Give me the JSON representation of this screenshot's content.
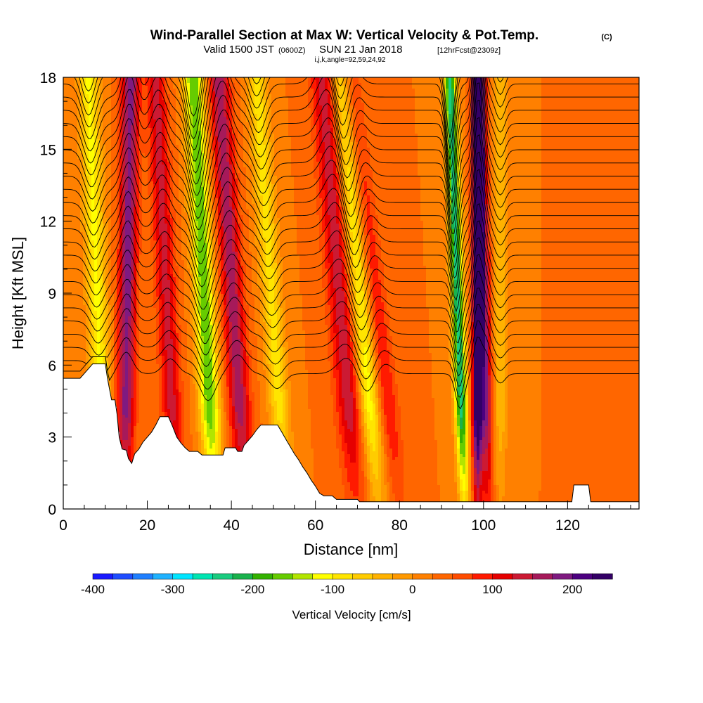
{
  "header": {
    "title": "Wind-Parallel Section at Max W: Vertical Velocity & Pot.Temp.",
    "copyright": "(C)",
    "valid_prefix": "Valid 1500 JST",
    "valid_utc": "(0600Z)",
    "valid_date": "SUN 21 Jan 2018",
    "forecast": "[12hrFcst@2309z]",
    "indices": "i,j,k,angle=92,59,24,92"
  },
  "chart_data": {
    "type": "heatmap",
    "xlabel": "Distance [nm]",
    "ylabel": "Height [Kft MSL]",
    "xlim": [
      0,
      137
    ],
    "ylim": [
      0,
      18
    ],
    "x_ticks": [
      0,
      20,
      40,
      60,
      80,
      100,
      120
    ],
    "y_ticks": [
      0,
      3,
      6,
      9,
      12,
      15,
      18
    ],
    "colorbar": {
      "label": "Vertical Velocity [cm/s]",
      "min": -400,
      "max": 250,
      "step": 25,
      "tick_values": [
        -400,
        -300,
        -200,
        -100,
        0,
        100,
        200
      ],
      "colors": [
        "#1a1aff",
        "#1f4dff",
        "#1f7fff",
        "#1fb2ff",
        "#00e5ff",
        "#00e5b2",
        "#19cc7f",
        "#19b24c",
        "#33b200",
        "#66cc00",
        "#b2e500",
        "#ffff00",
        "#ffe500",
        "#ffcc00",
        "#ffb200",
        "#ff9900",
        "#ff8000",
        "#ff6600",
        "#ff4c00",
        "#ff1a00",
        "#e50000",
        "#cc1a33",
        "#a61a5a",
        "#7f1a80",
        "#4c0080",
        "#330066"
      ]
    },
    "terrain": [
      [
        0,
        5.45
      ],
      [
        4,
        5.45
      ],
      [
        7,
        6.05
      ],
      [
        10,
        6.05
      ],
      [
        10.5,
        5.45
      ],
      [
        11.5,
        4.55
      ],
      [
        12.3,
        4.55
      ],
      [
        12.8,
        3.95
      ],
      [
        13.3,
        3.0
      ],
      [
        14,
        2.5
      ],
      [
        15,
        2.45
      ],
      [
        15.5,
        2.1
      ],
      [
        16.3,
        1.9
      ],
      [
        17,
        2.3
      ],
      [
        18,
        2.5
      ],
      [
        19,
        2.8
      ],
      [
        20,
        3.0
      ],
      [
        21,
        3.2
      ],
      [
        22,
        3.5
      ],
      [
        23,
        3.85
      ],
      [
        25,
        3.85
      ],
      [
        26,
        3.45
      ],
      [
        27,
        3.0
      ],
      [
        28,
        2.75
      ],
      [
        29,
        2.55
      ],
      [
        30,
        2.4
      ],
      [
        32,
        2.4
      ],
      [
        33,
        2.25
      ],
      [
        38,
        2.25
      ],
      [
        38.5,
        2.55
      ],
      [
        41,
        2.55
      ],
      [
        41.5,
        2.4
      ],
      [
        42.5,
        2.4
      ],
      [
        43,
        2.65
      ],
      [
        44,
        2.85
      ],
      [
        45,
        3.05
      ],
      [
        46,
        3.3
      ],
      [
        47,
        3.5
      ],
      [
        51,
        3.5
      ],
      [
        52,
        3.2
      ],
      [
        53,
        2.9
      ],
      [
        54,
        2.6
      ],
      [
        55,
        2.3
      ],
      [
        56,
        2.05
      ],
      [
        57,
        1.75
      ],
      [
        58,
        1.5
      ],
      [
        59,
        1.2
      ],
      [
        60,
        0.95
      ],
      [
        61,
        0.65
      ],
      [
        62,
        0.55
      ],
      [
        64,
        0.55
      ],
      [
        65,
        0.4
      ],
      [
        70,
        0.4
      ],
      [
        70.5,
        0.3
      ],
      [
        121,
        0.3
      ],
      [
        121.5,
        1.0
      ],
      [
        125,
        1.0
      ],
      [
        125.5,
        0.3
      ],
      [
        137,
        0.3
      ]
    ],
    "updraft_cores": [
      {
        "x_base": 14.5,
        "x_top": 16,
        "half_width_nm": 2.2,
        "w_max": 160
      },
      {
        "x_base": 27,
        "x_top": 22,
        "half_width_nm": 2.4,
        "w_max": 110
      },
      {
        "x_base": 43.5,
        "x_top": 37,
        "half_width_nm": 2.6,
        "w_max": 140
      },
      {
        "x_base": 70,
        "x_top": 62,
        "half_width_nm": 3.2,
        "w_max": 120
      },
      {
        "x_base": 80,
        "x_top": 68,
        "half_width_nm": 2.6,
        "w_max": 80
      },
      {
        "x_base": 98.5,
        "x_top": 98.5,
        "half_width_nm": 1.2,
        "w_max": 240
      },
      {
        "x_base": 101,
        "x_top": 99,
        "half_width_nm": 1.5,
        "w_max": 160
      }
    ],
    "downdraft_cores": [
      {
        "x_base": 10,
        "x_top": 6,
        "half_width_nm": 2.4,
        "w_min": -130
      },
      {
        "x_base": 36,
        "x_top": 31,
        "half_width_nm": 2.4,
        "w_min": -200
      },
      {
        "x_base": 53,
        "x_top": 46,
        "half_width_nm": 2.4,
        "w_min": -110
      },
      {
        "x_base": 75,
        "x_top": 66,
        "half_width_nm": 2.6,
        "w_min": -150
      },
      {
        "x_base": 95.5,
        "x_top": 92,
        "half_width_nm": 1.5,
        "w_min": -260
      },
      {
        "x_base": 104,
        "x_top": 104,
        "half_width_nm": 1.6,
        "w_min": -70
      }
    ],
    "theta_contour_count": 26
  }
}
